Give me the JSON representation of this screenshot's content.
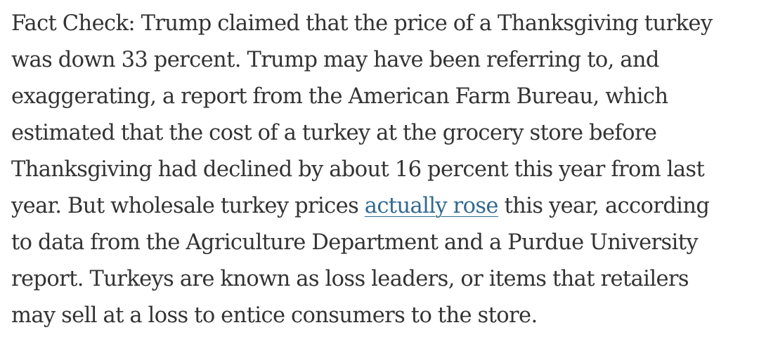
{
  "article": {
    "lines": [
      "Fact Check: Trump claimed that the price of a Thanksgiving turkey",
      "was down 33 percent. Trump may have been referring to, and",
      "exaggerating, a report from the American Farm Bureau, which",
      "estimated that the cost of a turkey at the grocery store before",
      "Thanksgiving had declined by about 16 percent this year from last"
    ],
    "line6": {
      "before": "year. But wholesale turkey prices ",
      "link_text": "actually rose",
      "after": " this year, according"
    },
    "lines_end": [
      "to data from the Agriculture Department and a Purdue University",
      "report. Turkeys are known as loss leaders, or items that retailers",
      "may sell at a loss to entice consumers to the store."
    ]
  },
  "colors": {
    "text": "#333333",
    "link": "#326891",
    "background": "#ffffff"
  }
}
